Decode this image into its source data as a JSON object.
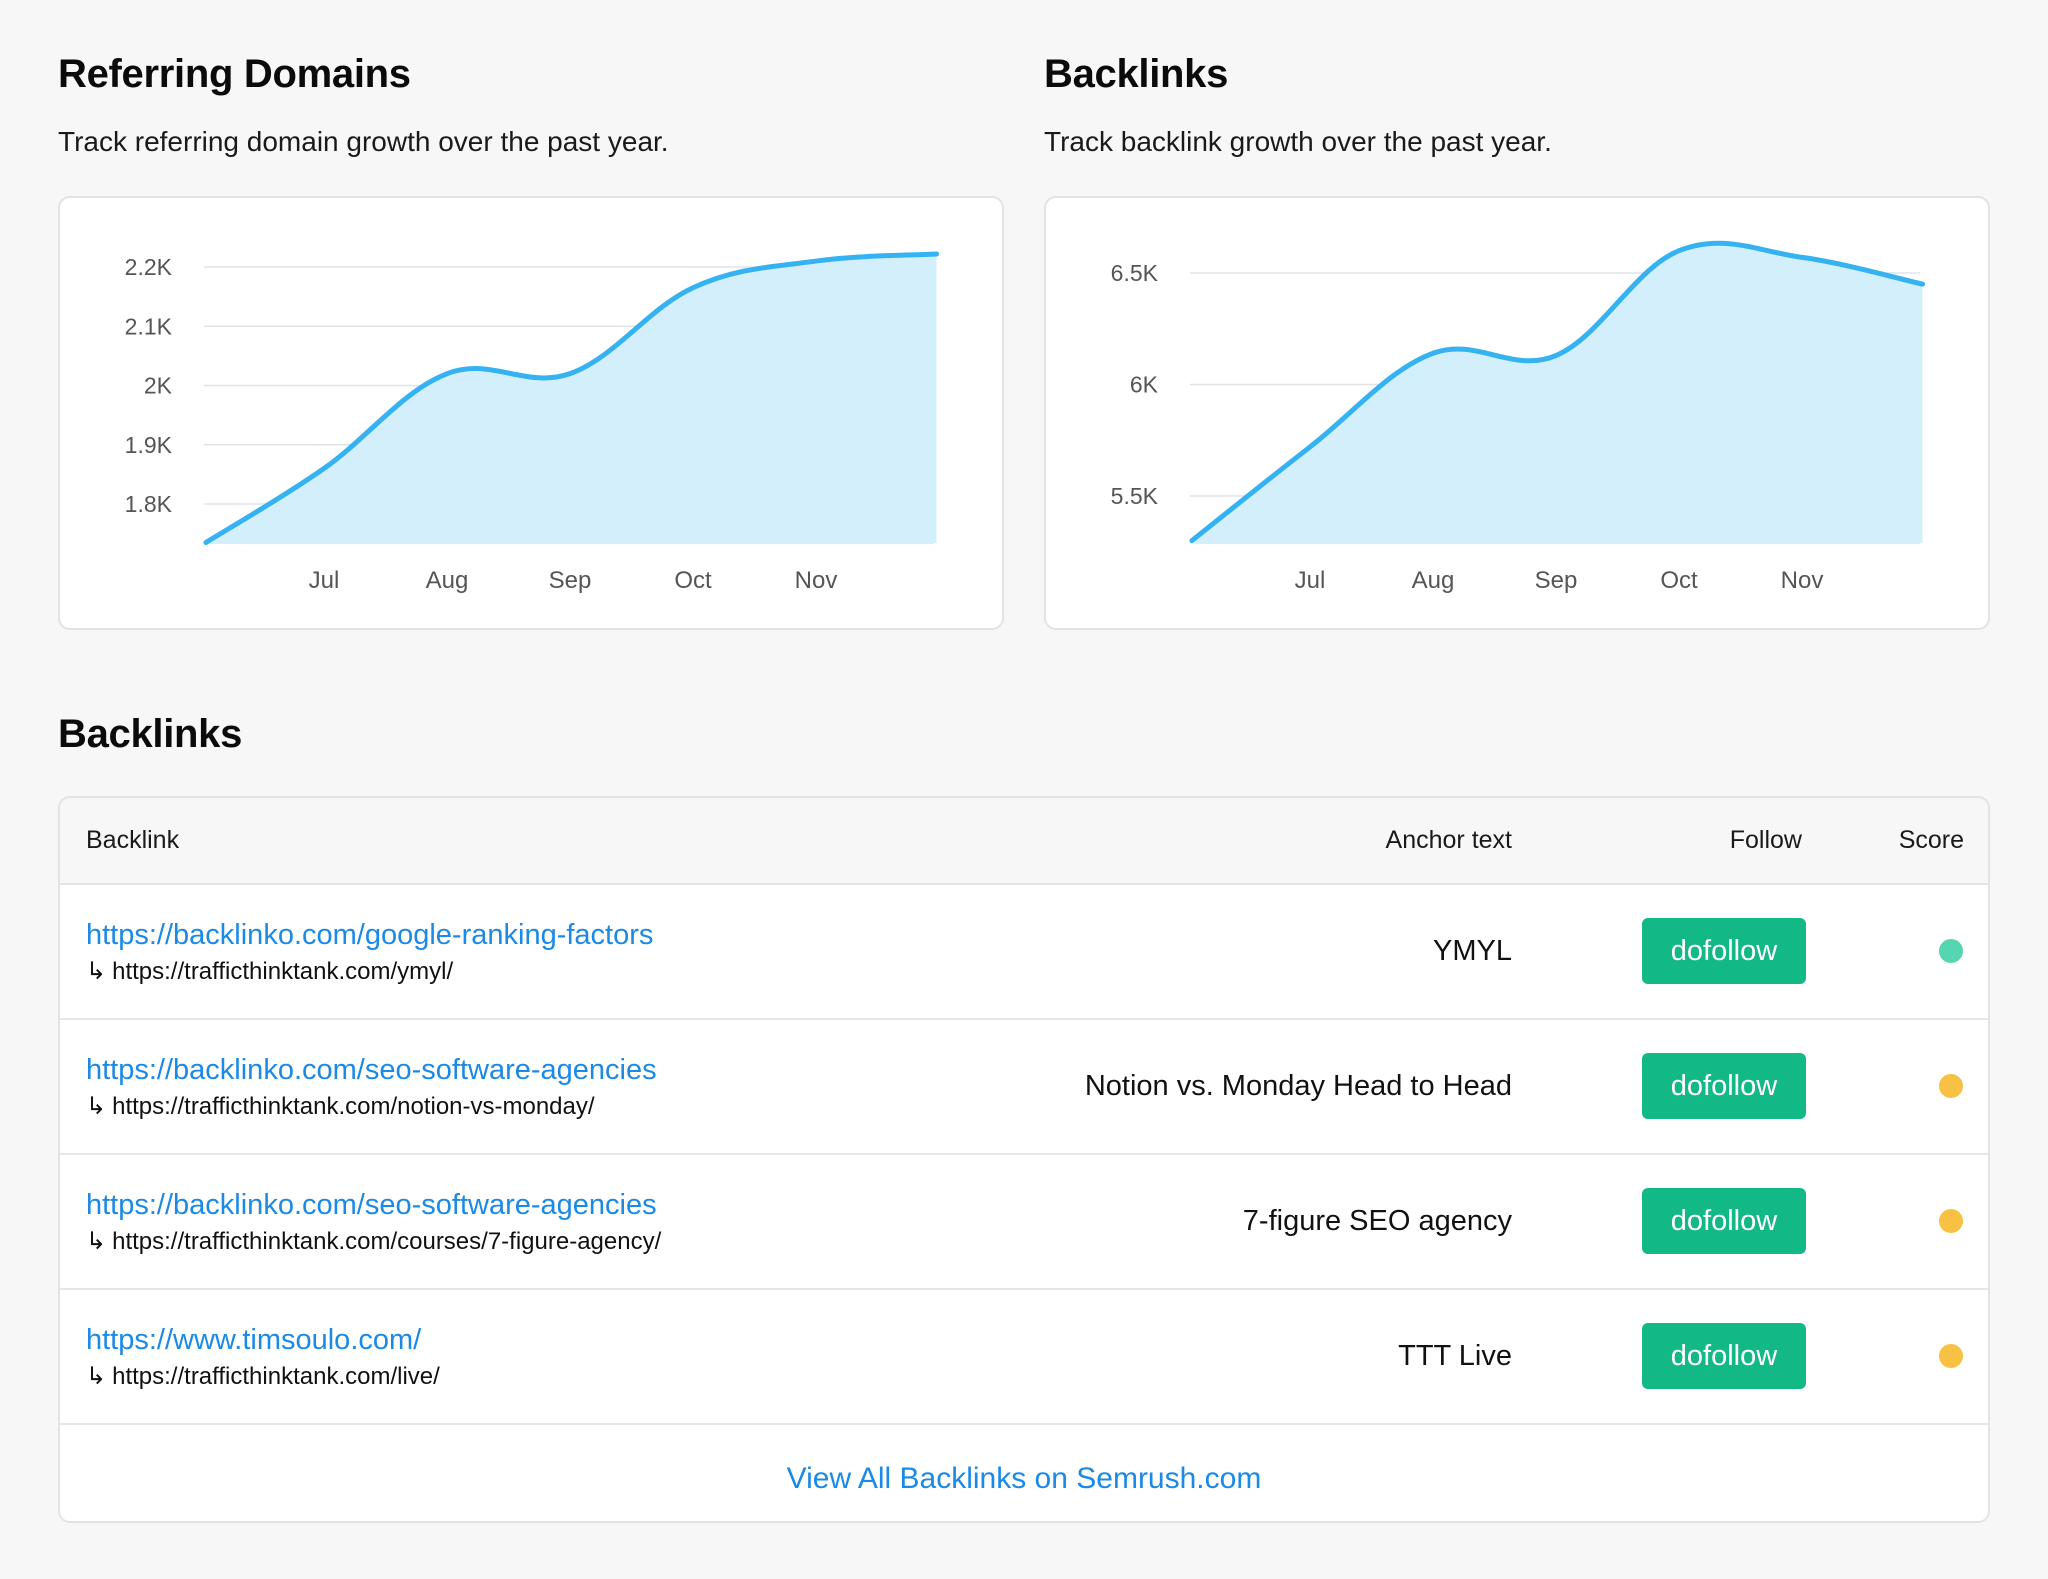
{
  "referring": {
    "title": "Referring Domains",
    "subtitle": "Track referring domain growth over the past year."
  },
  "backlinks_chart": {
    "title": "Backlinks",
    "subtitle": "Track backlink growth over the past year."
  },
  "table_section": {
    "title": "Backlinks",
    "headers": {
      "backlink": "Backlink",
      "anchor": "Anchor text",
      "follow": "Follow",
      "score": "Score"
    },
    "rows": [
      {
        "url": "https://backlinko.com/google-ranking-factors",
        "target": "https://trafficthinktank.com/ymyl/",
        "anchor": "YMYL",
        "follow": "dofollow",
        "score_color": "#55d6b0"
      },
      {
        "url": "https://backlinko.com/seo-software-agencies",
        "target": "https://trafficthinktank.com/notion-vs-monday/",
        "anchor": "Notion vs. Monday Head to Head",
        "follow": "dofollow",
        "score_color": "#f7c143"
      },
      {
        "url": "https://backlinko.com/seo-software-agencies",
        "target": "https://trafficthinktank.com/courses/7-figure-agency/",
        "anchor": "7-figure SEO agency",
        "follow": "dofollow",
        "score_color": "#f7c143"
      },
      {
        "url": "https://www.timsoulo.com/",
        "target": "https://trafficthinktank.com/live/",
        "anchor": "TTT Live",
        "follow": "dofollow",
        "score_color": "#f7c143"
      }
    ],
    "arrow_glyph": "↳",
    "view_all": "View All Backlinks on Semrush.com"
  },
  "colors": {
    "line": "#35b2f2",
    "area": "#d4effc",
    "grid": "#dfe3e8",
    "link": "#1b8ae6",
    "button": "#12b886"
  },
  "chart_data": [
    {
      "type": "area",
      "title": "Referring Domains",
      "x_ticks": [
        "Jul",
        "Aug",
        "Sep",
        "Oct",
        "Nov"
      ],
      "y_ticks": [
        {
          "label": "1.8K",
          "value": 1800
        },
        {
          "label": "1.9K",
          "value": 1900
        },
        {
          "label": "2K",
          "value": 2000
        },
        {
          "label": "2.1K",
          "value": 2100
        },
        {
          "label": "2.2K",
          "value": 2200
        }
      ],
      "ylim": [
        1735,
        2200
      ],
      "points": [
        {
          "x": -0.96,
          "y": 1735
        },
        {
          "x": 0,
          "y": 1860
        },
        {
          "x": 1,
          "y": 2020
        },
        {
          "x": 2,
          "y": 2020
        },
        {
          "x": 3,
          "y": 2165
        },
        {
          "x": 4,
          "y": 2210
        },
        {
          "x": 4.98,
          "y": 2222
        }
      ],
      "grid": true
    },
    {
      "type": "area",
      "title": "Backlinks",
      "x_ticks": [
        "Jul",
        "Aug",
        "Sep",
        "Oct",
        "Nov"
      ],
      "y_ticks": [
        {
          "label": "5.5K",
          "value": 5500
        },
        {
          "label": "6K",
          "value": 6000
        },
        {
          "label": "6.5K",
          "value": 6500
        }
      ],
      "ylim": [
        5300,
        6500
      ],
      "points": [
        {
          "x": -0.96,
          "y": 5300
        },
        {
          "x": 0,
          "y": 5720
        },
        {
          "x": 1,
          "y": 6140
        },
        {
          "x": 2,
          "y": 6130
        },
        {
          "x": 3,
          "y": 6600
        },
        {
          "x": 4,
          "y": 6570
        },
        {
          "x": 4.98,
          "y": 6450
        }
      ],
      "grid": true
    }
  ]
}
